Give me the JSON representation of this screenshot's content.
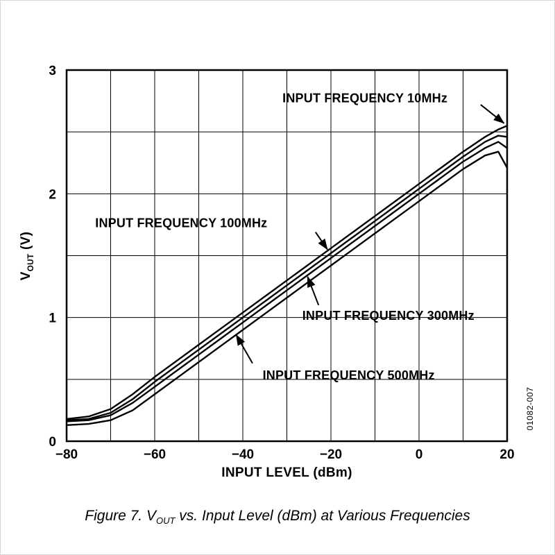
{
  "page": {
    "watermark": "01082-007",
    "caption": {
      "prefix": "Figure 7. V",
      "sub": "OUT",
      "suffix": " vs. Input Level (dBm) at Various Frequencies"
    }
  },
  "chart_data": {
    "type": "line",
    "title": "",
    "xlabel": "INPUT LEVEL (dBm)",
    "ylabel_parts": {
      "prefix": "V",
      "sub": "OUT",
      "suffix": " (V)"
    },
    "xlim": [
      -80,
      20
    ],
    "ylim": [
      0,
      3
    ],
    "x_grid_step": 10,
    "y_grid_step": 0.5,
    "grid": true,
    "legend_position": "none",
    "line_color": "#000000",
    "xticks": [
      {
        "value": -80,
        "label": "−80"
      },
      {
        "value": -60,
        "label": "−60"
      },
      {
        "value": -40,
        "label": "−40"
      },
      {
        "value": -20,
        "label": "−20"
      },
      {
        "value": 0,
        "label": "0"
      },
      {
        "value": 20,
        "label": "20"
      }
    ],
    "yticks": [
      {
        "value": 0,
        "label": "0"
      },
      {
        "value": 1,
        "label": "1"
      },
      {
        "value": 2,
        "label": "2"
      },
      {
        "value": 3,
        "label": "3"
      }
    ],
    "x": [
      -80,
      -75,
      -70,
      -65,
      -60,
      -55,
      -50,
      -45,
      -40,
      -35,
      -30,
      -25,
      -20,
      -15,
      -10,
      -5,
      0,
      5,
      10,
      15,
      18,
      20
    ],
    "series": [
      {
        "name": "INPUT FREQUENCY 10MHz",
        "values": [
          0.18,
          0.2,
          0.26,
          0.38,
          0.52,
          0.65,
          0.78,
          0.91,
          1.04,
          1.17,
          1.3,
          1.43,
          1.56,
          1.69,
          1.82,
          1.95,
          2.08,
          2.21,
          2.34,
          2.46,
          2.52,
          2.55
        ]
      },
      {
        "name": "INPUT FREQUENCY 100MHz",
        "values": [
          0.17,
          0.18,
          0.23,
          0.34,
          0.48,
          0.61,
          0.74,
          0.87,
          1.0,
          1.13,
          1.26,
          1.39,
          1.52,
          1.65,
          1.78,
          1.91,
          2.04,
          2.17,
          2.3,
          2.42,
          2.47,
          2.46
        ]
      },
      {
        "name": "INPUT FREQUENCY 300MHz",
        "values": [
          0.16,
          0.17,
          0.21,
          0.31,
          0.44,
          0.57,
          0.7,
          0.83,
          0.96,
          1.09,
          1.22,
          1.35,
          1.48,
          1.61,
          1.74,
          1.87,
          2.0,
          2.13,
          2.26,
          2.37,
          2.42,
          2.37
        ]
      },
      {
        "name": "INPUT FREQUENCY 500MHz",
        "values": [
          0.13,
          0.14,
          0.17,
          0.25,
          0.38,
          0.51,
          0.64,
          0.77,
          0.9,
          1.03,
          1.16,
          1.29,
          1.42,
          1.55,
          1.68,
          1.81,
          1.94,
          2.07,
          2.2,
          2.31,
          2.34,
          2.21
        ]
      }
    ],
    "annotations": [
      {
        "label": "INPUT FREQUENCY 10MHz",
        "text": [
          -31,
          2.74
        ],
        "arrow_from": [
          14,
          2.72
        ],
        "arrow_to": [
          19.3,
          2.57
        ]
      },
      {
        "label": "INPUT FREQUENCY 100MHz",
        "text": [
          -73.5,
          1.73
        ],
        "arrow_from": [
          -23.5,
          1.69
        ],
        "arrow_to": [
          -20.8,
          1.55
        ]
      },
      {
        "label": "INPUT FREQUENCY 300MHz",
        "text": [
          -26.5,
          0.98
        ],
        "arrow_from": [
          -22.8,
          1.1
        ],
        "arrow_to": [
          -25.3,
          1.33
        ]
      },
      {
        "label": "INPUT FREQUENCY 500MHz",
        "text": [
          -35.5,
          0.5
        ],
        "arrow_from": [
          -37.8,
          0.63
        ],
        "arrow_to": [
          -41.5,
          0.86
        ]
      }
    ]
  }
}
